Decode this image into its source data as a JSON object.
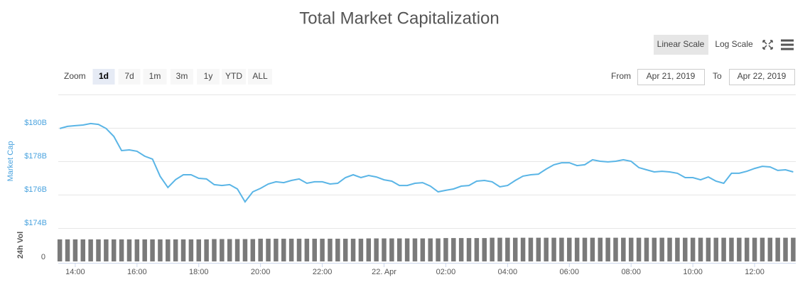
{
  "chart_data": {
    "type": "line",
    "title": "Total Market Capitalization",
    "y_axis_title": "Market Cap",
    "y2_axis_title": "24h Vol",
    "x": [
      "2019-04-21 13:30",
      "2019-04-21 13:45",
      "2019-04-21 14:00",
      "2019-04-21 14:15",
      "2019-04-21 14:30",
      "2019-04-21 14:45",
      "2019-04-21 15:00",
      "2019-04-21 15:15",
      "2019-04-21 15:30",
      "2019-04-21 15:45",
      "2019-04-21 16:00",
      "2019-04-21 16:15",
      "2019-04-21 16:30",
      "2019-04-21 16:45",
      "2019-04-21 17:00",
      "2019-04-21 17:15",
      "2019-04-21 17:30",
      "2019-04-21 17:45",
      "2019-04-21 18:00",
      "2019-04-21 18:15",
      "2019-04-21 18:30",
      "2019-04-21 18:45",
      "2019-04-21 19:00",
      "2019-04-21 19:15",
      "2019-04-21 19:30",
      "2019-04-21 19:45",
      "2019-04-21 20:00",
      "2019-04-21 20:15",
      "2019-04-21 20:30",
      "2019-04-21 20:45",
      "2019-04-21 21:00",
      "2019-04-21 21:15",
      "2019-04-21 21:30",
      "2019-04-21 21:45",
      "2019-04-21 22:00",
      "2019-04-21 22:15",
      "2019-04-21 22:30",
      "2019-04-21 22:45",
      "2019-04-21 23:00",
      "2019-04-21 23:15",
      "2019-04-21 23:30",
      "2019-04-21 23:45",
      "2019-04-22 00:00",
      "2019-04-22 00:15",
      "2019-04-22 00:30",
      "2019-04-22 00:45",
      "2019-04-22 01:00",
      "2019-04-22 01:15",
      "2019-04-22 01:30",
      "2019-04-22 01:45",
      "2019-04-22 02:00",
      "2019-04-22 02:15",
      "2019-04-22 02:30",
      "2019-04-22 02:45",
      "2019-04-22 03:00",
      "2019-04-22 03:15",
      "2019-04-22 03:30",
      "2019-04-22 03:45",
      "2019-04-22 04:00",
      "2019-04-22 04:15",
      "2019-04-22 04:30",
      "2019-04-22 04:45",
      "2019-04-22 05:00",
      "2019-04-22 05:15",
      "2019-04-22 05:30",
      "2019-04-22 05:45",
      "2019-04-22 06:00",
      "2019-04-22 06:15",
      "2019-04-22 06:30",
      "2019-04-22 06:45",
      "2019-04-22 07:00",
      "2019-04-22 07:15",
      "2019-04-22 07:30",
      "2019-04-22 07:45",
      "2019-04-22 08:00",
      "2019-04-22 08:15",
      "2019-04-22 08:30",
      "2019-04-22 08:45",
      "2019-04-22 09:00",
      "2019-04-22 09:15",
      "2019-04-22 09:30",
      "2019-04-22 09:45",
      "2019-04-22 10:00",
      "2019-04-22 10:15",
      "2019-04-22 10:30",
      "2019-04-22 10:45",
      "2019-04-22 11:00",
      "2019-04-22 11:15",
      "2019-04-22 11:30",
      "2019-04-22 11:45",
      "2019-04-22 12:00",
      "2019-04-22 12:15",
      "2019-04-22 12:30",
      "2019-04-22 12:45",
      "2019-04-22 13:00",
      "2019-04-22 13:15"
    ],
    "series": [
      {
        "name": "Market Cap",
        "color": "#5ab5e6",
        "values": [
          179.96,
          180.09,
          180.13,
          180.17,
          180.26,
          180.21,
          179.96,
          179.49,
          178.64,
          178.68,
          178.6,
          178.3,
          178.13,
          177.1,
          176.43,
          176.9,
          177.19,
          177.19,
          176.98,
          176.94,
          176.6,
          176.55,
          176.6,
          176.34,
          175.57,
          176.17,
          176.38,
          176.64,
          176.77,
          176.72,
          176.85,
          176.94,
          176.68,
          176.77,
          176.77,
          176.64,
          176.68,
          177.02,
          177.19,
          177.02,
          177.15,
          177.06,
          176.89,
          176.81,
          176.55,
          176.55,
          176.68,
          176.72,
          176.51,
          176.17,
          176.26,
          176.34,
          176.51,
          176.55,
          176.81,
          176.85,
          176.77,
          176.47,
          176.55,
          176.85,
          177.11,
          177.19,
          177.23,
          177.53,
          177.79,
          177.91,
          177.91,
          177.74,
          177.79,
          178.09,
          178.0,
          177.96,
          178.0,
          178.09,
          178.0,
          177.62,
          177.49,
          177.36,
          177.4,
          177.36,
          177.28,
          177.02,
          177.02,
          176.89,
          177.06,
          176.81,
          176.68,
          177.28,
          177.28,
          177.4,
          177.57,
          177.7,
          177.66,
          177.45,
          177.49,
          177.36
        ]
      },
      {
        "name": "24h Vol",
        "color": "#7a7a7a",
        "axis": "y2",
        "values": [
          66,
          66,
          66,
          66,
          66,
          66,
          66,
          66,
          66,
          66,
          66,
          66,
          66,
          66,
          66,
          66,
          66,
          66,
          66,
          66,
          67,
          67,
          67,
          67,
          67,
          67,
          68,
          68,
          68,
          68,
          68,
          68,
          68,
          68,
          68,
          68,
          68,
          68,
          68,
          68,
          69,
          69,
          69,
          69,
          69,
          69,
          69,
          69,
          69,
          69,
          70,
          70,
          70,
          70,
          70,
          70,
          71,
          71,
          71,
          71,
          71,
          71,
          71,
          71,
          71,
          71,
          71,
          71,
          71,
          71,
          71,
          71,
          71,
          71,
          71,
          71,
          71,
          71,
          71,
          71,
          71,
          71,
          71,
          71,
          71,
          71,
          71,
          71,
          71,
          71,
          71,
          71,
          71,
          71,
          71,
          71
        ]
      }
    ],
    "xlim": [
      "2019-04-21 13:27",
      "2019-04-22 13:20"
    ],
    "xticks": [
      {
        "value": "2019-04-21 14:00",
        "label": "14:00"
      },
      {
        "value": "2019-04-21 16:00",
        "label": "16:00"
      },
      {
        "value": "2019-04-21 18:00",
        "label": "18:00"
      },
      {
        "value": "2019-04-21 20:00",
        "label": "20:00"
      },
      {
        "value": "2019-04-21 22:00",
        "label": "22:00"
      },
      {
        "value": "2019-04-22 00:00",
        "label": "22. Apr"
      },
      {
        "value": "2019-04-22 02:00",
        "label": "02:00"
      },
      {
        "value": "2019-04-22 04:00",
        "label": "04:00"
      },
      {
        "value": "2019-04-22 06:00",
        "label": "06:00"
      },
      {
        "value": "2019-04-22 08:00",
        "label": "08:00"
      },
      {
        "value": "2019-04-22 10:00",
        "label": "10:00"
      },
      {
        "value": "2019-04-22 12:00",
        "label": "12:00"
      }
    ],
    "ylim": [
      174,
      182
    ],
    "yticks": [
      {
        "value": 174,
        "label": "$174B"
      },
      {
        "value": 176,
        "label": "$176B"
      },
      {
        "value": 178,
        "label": "$178B"
      },
      {
        "value": 180,
        "label": "$180B"
      }
    ],
    "y2lim": [
      0,
      100
    ],
    "y2ticks": [
      0
    ],
    "grid": true
  },
  "controls": {
    "scale_buttons": [
      "Linear Scale",
      "Log Scale"
    ],
    "active_scale": "Linear Scale",
    "zoom_label": "Zoom",
    "zoom_buttons": [
      "1d",
      "7d",
      "1m",
      "3m",
      "1y",
      "YTD",
      "ALL"
    ],
    "active_zoom": "1d",
    "from_label": "From",
    "from_value": "Apr 21, 2019",
    "to_label": "To",
    "to_value": "Apr 22, 2019"
  }
}
